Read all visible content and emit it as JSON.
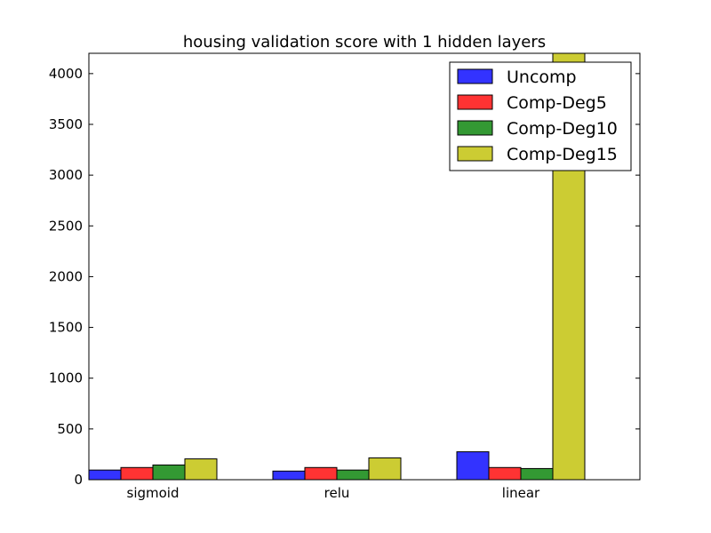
{
  "chart_data": {
    "type": "bar",
    "title": "housing validation score with 1 hidden layers",
    "xlabel": "",
    "ylabel": "",
    "categories": [
      "sigmoid",
      "relu",
      "linear"
    ],
    "series": [
      {
        "name": "Uncomp",
        "color": "#3333ff",
        "values": [
          95,
          85,
          275
        ]
      },
      {
        "name": "Comp-Deg5",
        "color": "#ff3333",
        "values": [
          120,
          120,
          120
        ]
      },
      {
        "name": "Comp-Deg10",
        "color": "#339933",
        "values": [
          145,
          95,
          110
        ]
      },
      {
        "name": "Comp-Deg15",
        "color": "#cccc33",
        "values": [
          205,
          215,
          4200
        ]
      }
    ],
    "ylim": [
      0,
      4200
    ],
    "yticks": [
      0,
      500,
      1000,
      1500,
      2000,
      2500,
      3000,
      3500,
      4000
    ],
    "grid": false,
    "legend_position": "top-right"
  }
}
